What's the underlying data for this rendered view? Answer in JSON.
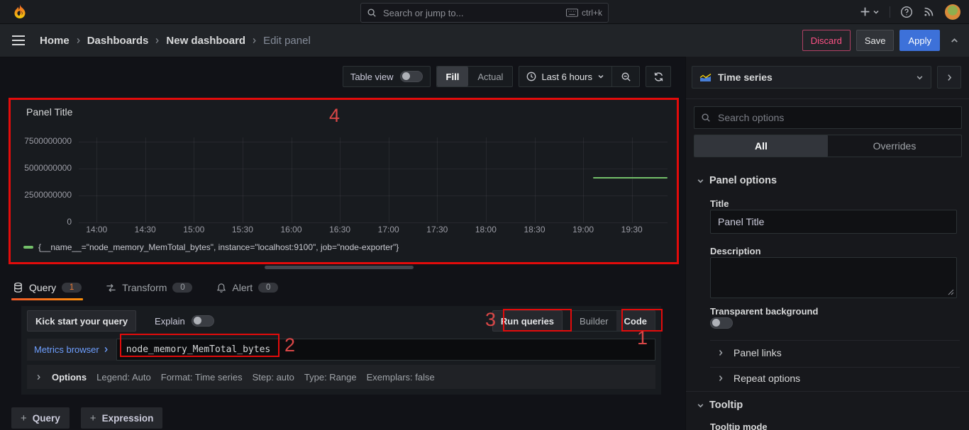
{
  "topbar": {
    "search_placeholder": "Search or jump to...",
    "shortcut": "ctrl+k"
  },
  "breadcrumb": {
    "items": [
      "Home",
      "Dashboards",
      "New dashboard",
      "Edit panel"
    ]
  },
  "actions": {
    "discard": "Discard",
    "save": "Save",
    "apply": "Apply"
  },
  "view_toolbar": {
    "table_view": "Table view",
    "fill": "Fill",
    "actual": "Actual",
    "time_range": "Last 6 hours"
  },
  "panel": {
    "title": "Panel Title"
  },
  "chart_data": {
    "type": "line",
    "title": "Panel Title",
    "x_ticks": [
      "14:00",
      "14:30",
      "15:00",
      "15:30",
      "16:00",
      "16:30",
      "17:00",
      "17:30",
      "18:00",
      "18:30",
      "19:00",
      "19:30"
    ],
    "x_range_minutes": [
      -11,
      352
    ],
    "y_ticks": [
      0,
      2500000000,
      5000000000,
      7500000000
    ],
    "ylim": [
      0,
      7900000000
    ],
    "grid": true,
    "legend_position": "bottom",
    "series": [
      {
        "name": "{__name__=\"node_memory_MemTotal_bytes\", instance=\"localhost:9100\", job=\"node-exporter\"}",
        "color": "#73bf69",
        "points": [
          [
            "19:06",
            4150000000
          ],
          [
            "19:52",
            4150000000
          ]
        ]
      }
    ]
  },
  "editor_tabs": [
    {
      "label": "Query",
      "count": "1"
    },
    {
      "label": "Transform",
      "count": "0"
    },
    {
      "label": "Alert",
      "count": "0"
    }
  ],
  "query_editor": {
    "kick_start": "Kick start your query",
    "explain": "Explain",
    "run_queries": "Run queries",
    "builder": "Builder",
    "code": "Code",
    "metrics_browser": "Metrics browser",
    "query_text": "node_memory_MemTotal_bytes",
    "options_summary": {
      "label": "Options",
      "items": [
        "Legend: Auto",
        "Format: Time series",
        "Step: auto",
        "Type: Range",
        "Exemplars: false"
      ]
    },
    "add_query": "Query",
    "add_expression": "Expression"
  },
  "sidebar": {
    "viz_type": "Time series",
    "search_placeholder": "Search options",
    "tabs": {
      "all": "All",
      "overrides": "Overrides"
    },
    "panel_options": {
      "header": "Panel options",
      "title_label": "Title",
      "title_value": "Panel Title",
      "description_label": "Description",
      "transparent_label": "Transparent background"
    },
    "collapsed_sections": [
      "Panel links",
      "Repeat options"
    ],
    "tooltip": {
      "header": "Tooltip",
      "mode_label": "Tooltip mode"
    }
  },
  "annotations": {
    "labels": [
      "1",
      "2",
      "3",
      "4"
    ],
    "color": "#e30b0b"
  }
}
